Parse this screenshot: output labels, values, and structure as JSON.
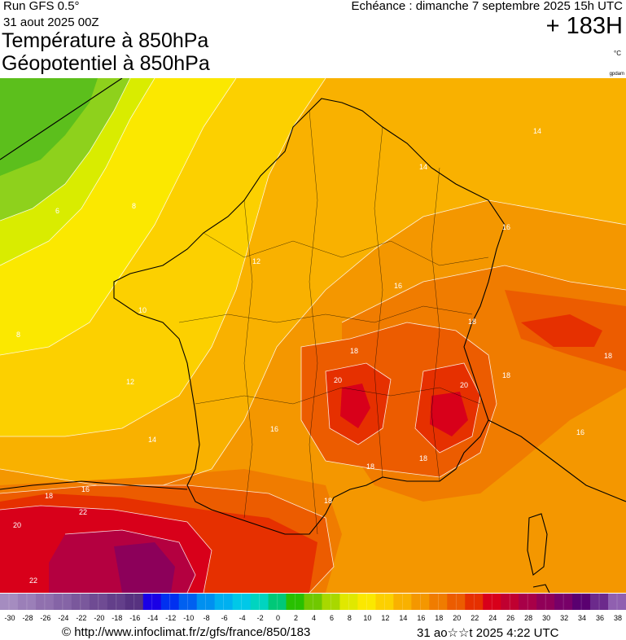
{
  "header": {
    "run": "Run GFS 0.5°",
    "run_date": "31 aout 2025 00Z",
    "title_line1": "Température à 850hPa",
    "title_line2": "Géopotentiel à 850hPa",
    "echeance": "Echéance : dimanche 7 septembre 2025 15h UTC",
    "hour": "+ 183H",
    "unit": "°C",
    "credit_small": "gpdam"
  },
  "map": {
    "colors": {
      "green_dark": "#5cbf1c",
      "green": "#8ed11c",
      "yellow_green": "#d9ec00",
      "yellow": "#fbe800",
      "yellow_orange": "#fcd000",
      "orange_light": "#f9b100",
      "orange": "#f49700",
      "orange_dark": "#f07c00",
      "red_orange": "#ec5c00",
      "red": "#e63000",
      "red_dark": "#d8001a",
      "crimson": "#b40040",
      "purple": "#8c005a",
      "border": "#000000",
      "contour": "#ffffff"
    },
    "contour_labels": [
      {
        "text": "6"
      },
      {
        "text": "8"
      },
      {
        "text": "8"
      },
      {
        "text": "10"
      },
      {
        "text": "12"
      },
      {
        "text": "12"
      },
      {
        "text": "14"
      },
      {
        "text": "14"
      },
      {
        "text": "14"
      },
      {
        "text": "16"
      },
      {
        "text": "16"
      },
      {
        "text": "16"
      },
      {
        "text": "16"
      },
      {
        "text": "18"
      },
      {
        "text": "18"
      },
      {
        "text": "18"
      },
      {
        "text": "18"
      },
      {
        "text": "18"
      },
      {
        "text": "18"
      },
      {
        "text": "18"
      },
      {
        "text": "20"
      },
      {
        "text": "20"
      },
      {
        "text": "20"
      },
      {
        "text": "22"
      },
      {
        "text": "22"
      },
      {
        "text": "18"
      },
      {
        "text": "16"
      }
    ]
  },
  "legend": {
    "ticks": [
      "-30",
      "-28",
      "-26",
      "-24",
      "-22",
      "-20",
      "-18",
      "-16",
      "-14",
      "-12",
      "-10",
      "-8",
      "-6",
      "-4",
      "-2",
      "0",
      "2",
      "4",
      "6",
      "8",
      "10",
      "12",
      "14",
      "16",
      "18",
      "20",
      "22",
      "24",
      "26",
      "28",
      "30",
      "32",
      "34",
      "36",
      "38"
    ],
    "colors": [
      "#a58cc0",
      "#9b7fb8",
      "#9070ae",
      "#8564a6",
      "#7a589c",
      "#6f4b93",
      "#633f8a",
      "#573280",
      "#1a00e6",
      "#0030f0",
      "#0060f0",
      "#0090f0",
      "#00b0f0",
      "#00c8e8",
      "#00d4c0",
      "#00c878",
      "#28c000",
      "#70c800",
      "#a8d800",
      "#e0e800",
      "#fbe800",
      "#fcd000",
      "#f9b100",
      "#f49700",
      "#f07c00",
      "#ec5c00",
      "#e63000",
      "#d8001a",
      "#c00030",
      "#a80048",
      "#900058",
      "#780068",
      "#5a0070",
      "#6c2a8c",
      "#9060b0"
    ]
  },
  "footer": {
    "url": "© http://www.infoclimat.fr/z/gfs/france/850/183",
    "date": "31 ao☆☆t 2025  4:22 UTC"
  }
}
